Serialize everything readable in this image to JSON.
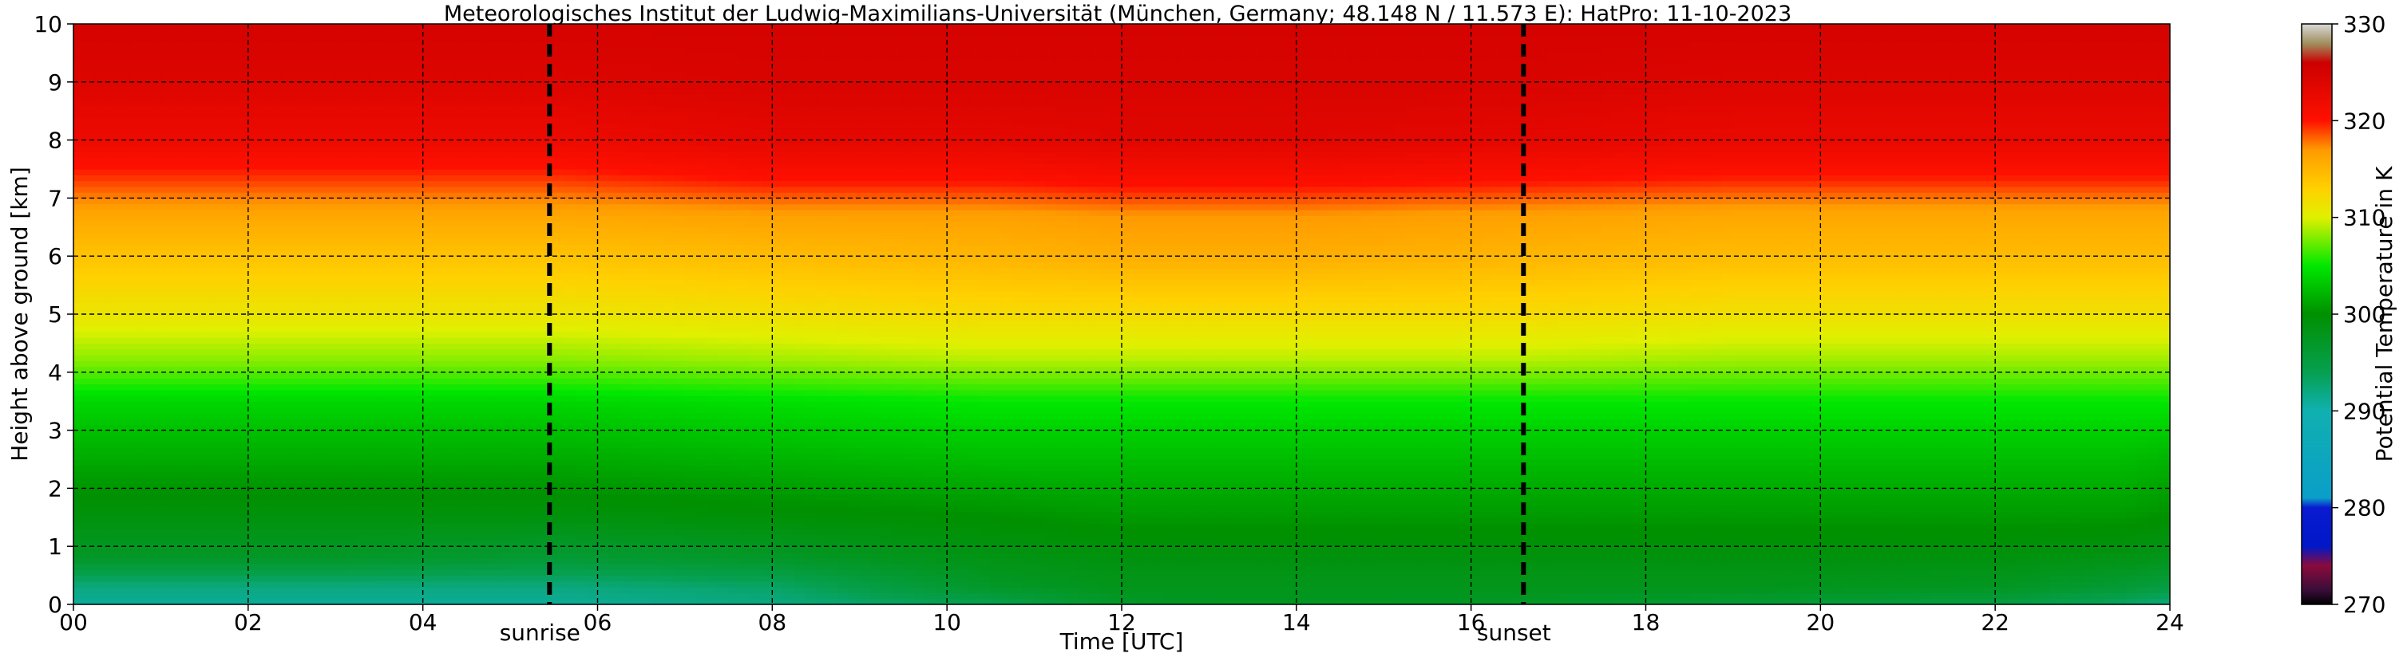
{
  "chart_data": {
    "type": "heatmap",
    "title": "Meteorologisches Institut der Ludwig-Maximilians-Universität (München, Germany; 48.148 N / 11.573 E):    HatPro: 11-10-2023",
    "xlabel": "Time [UTC]",
    "ylabel": "Height above ground [km]",
    "xlim": [
      0,
      24
    ],
    "ylim": [
      0,
      10
    ],
    "x_ticks": [
      "00",
      "02",
      "04",
      "06",
      "08",
      "10",
      "12",
      "14",
      "16",
      "18",
      "20",
      "22",
      "24"
    ],
    "y_ticks": [
      "0",
      "1",
      "2",
      "3",
      "4",
      "5",
      "6",
      "7",
      "8",
      "9",
      "10"
    ],
    "grid": true,
    "colorbar": {
      "label": "Potential Temperature in K",
      "range": [
        270,
        330
      ],
      "ticks": [
        "270",
        "280",
        "290",
        "300",
        "310",
        "320",
        "330"
      ],
      "stops": [
        {
          "value": 270,
          "color": "#000000"
        },
        {
          "value": 271.5,
          "color": "#3a0d3a"
        },
        {
          "value": 274,
          "color": "#8b0a3c"
        },
        {
          "value": 276,
          "color": "#0018c8"
        },
        {
          "value": 280,
          "color": "#0a1ad0"
        },
        {
          "value": 281,
          "color": "#0a9ec8"
        },
        {
          "value": 290,
          "color": "#10b0b0"
        },
        {
          "value": 294,
          "color": "#06a050"
        },
        {
          "value": 300,
          "color": "#009000"
        },
        {
          "value": 305,
          "color": "#00e800"
        },
        {
          "value": 310,
          "color": "#e0f000"
        },
        {
          "value": 313,
          "color": "#ffd000"
        },
        {
          "value": 317,
          "color": "#ff9a00"
        },
        {
          "value": 320,
          "color": "#ff1000"
        },
        {
          "value": 326,
          "color": "#cc0000"
        },
        {
          "value": 328,
          "color": "#a09060"
        },
        {
          "value": 330,
          "color": "#d8d8d8"
        }
      ]
    },
    "profile_times": [
      0,
      3,
      5.5,
      8,
      10.5,
      12,
      14,
      16.6,
      19,
      22,
      23.5,
      24
    ],
    "profile_heights": [
      0,
      0.3,
      0.8,
      1.5,
      2.5,
      3.5,
      4.2,
      5,
      6,
      6.7,
      7.3,
      8,
      9,
      10
    ],
    "profile_values": [
      [
        291,
        292,
        297,
        299,
        301.5,
        304,
        308,
        311,
        314,
        316,
        319,
        322,
        324,
        325
      ],
      [
        291,
        292,
        297,
        299,
        301.5,
        304,
        308,
        311,
        314,
        316,
        319,
        322,
        324,
        325
      ],
      [
        291,
        292,
        296,
        299,
        301.5,
        304,
        308,
        311,
        314,
        316,
        319,
        322,
        324,
        325
      ],
      [
        292,
        293,
        297,
        299.5,
        302,
        304.5,
        308.5,
        311.5,
        314.5,
        316.5,
        320,
        323,
        324.5,
        325
      ],
      [
        294,
        297,
        298.5,
        300,
        302.5,
        305,
        309,
        312,
        315,
        316.5,
        320,
        323,
        324.5,
        325
      ],
      [
        297,
        298,
        299,
        300.5,
        302.5,
        305,
        309,
        312,
        315.5,
        317,
        320.5,
        323.5,
        324.5,
        325
      ],
      [
        297.5,
        298,
        299,
        300.5,
        302.5,
        305,
        309,
        312,
        315.5,
        317,
        320.5,
        323.5,
        324.5,
        325
      ],
      [
        297,
        298,
        299,
        300.5,
        302.5,
        305,
        309,
        312,
        315,
        316.5,
        320,
        323,
        324.5,
        325
      ],
      [
        296,
        298,
        299,
        300.5,
        302.5,
        305,
        308.5,
        311.5,
        314.5,
        316,
        319.5,
        322.5,
        324,
        325
      ],
      [
        295,
        297.5,
        299,
        300.5,
        302.5,
        305,
        308.5,
        311.5,
        314.5,
        316,
        319.5,
        322.5,
        324,
        325
      ],
      [
        293,
        296,
        298.5,
        300.5,
        302.5,
        305,
        308.5,
        311.5,
        314.5,
        316,
        319.5,
        322.5,
        324,
        325
      ],
      [
        292,
        295,
        298,
        300,
        302,
        305,
        308.5,
        311.5,
        314.5,
        316,
        319.5,
        322.5,
        324,
        325
      ]
    ],
    "annotations": [
      {
        "label": "sunrise",
        "time": 5.45
      },
      {
        "label": "sunset",
        "time": 16.6
      }
    ]
  }
}
